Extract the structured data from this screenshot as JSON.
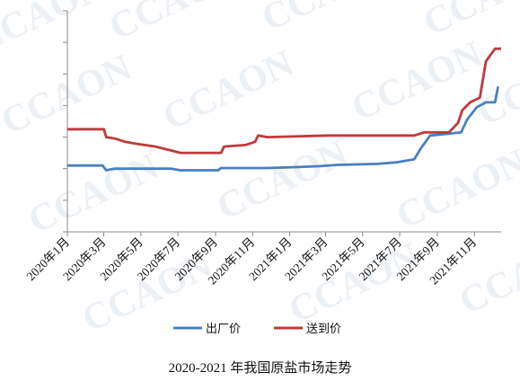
{
  "watermark": "CCAON",
  "caption": "2020-2021 年我国原盐市场走势",
  "chart_data": {
    "type": "line",
    "title": "2020-2021 年我国原盐市场走势",
    "xlabel": "",
    "ylabel": "",
    "x_range": [
      "2020-01-01",
      "2021-12-15"
    ],
    "x_ticks": [
      "2020年1月",
      "2020年3月",
      "2020年5月",
      "2020年7月",
      "2020年9月",
      "2020年11月",
      "2021年1月",
      "2021年3月",
      "2021年5月",
      "2021年7月",
      "2021年9月",
      "2021年11月"
    ],
    "y_tick_count": 8,
    "y_labels_visible": false,
    "legend_position": "bottom",
    "grid": false,
    "series": [
      {
        "name": "出厂价",
        "color": "#4a7fc1",
        "points": [
          [
            "2020-01-01",
            2.1
          ],
          [
            "2020-02-28",
            2.1
          ],
          [
            "2020-03-05",
            1.95
          ],
          [
            "2020-03-18",
            2.0
          ],
          [
            "2020-06-20",
            2.0
          ],
          [
            "2020-07-05",
            1.95
          ],
          [
            "2020-09-05",
            1.95
          ],
          [
            "2020-09-10",
            2.02
          ],
          [
            "2020-11-25",
            2.02
          ],
          [
            "2021-01-10",
            2.05
          ],
          [
            "2021-02-20",
            2.08
          ],
          [
            "2021-03-20",
            2.12
          ],
          [
            "2021-05-25",
            2.15
          ],
          [
            "2021-06-25",
            2.2
          ],
          [
            "2021-07-25",
            2.3
          ],
          [
            "2021-08-05",
            2.65
          ],
          [
            "2021-08-20",
            3.05
          ],
          [
            "2021-09-15",
            3.1
          ],
          [
            "2021-10-10",
            3.15
          ],
          [
            "2021-10-20",
            3.55
          ],
          [
            "2021-11-05",
            3.95
          ],
          [
            "2021-11-20",
            4.1
          ],
          [
            "2021-12-05",
            4.1
          ],
          [
            "2021-12-10",
            4.6
          ]
        ]
      },
      {
        "name": "送到价",
        "color": "#c0393b",
        "points": [
          [
            "2020-01-01",
            3.25
          ],
          [
            "2020-03-01",
            3.25
          ],
          [
            "2020-03-05",
            3.0
          ],
          [
            "2020-03-20",
            2.95
          ],
          [
            "2020-04-05",
            2.85
          ],
          [
            "2020-04-20",
            2.8
          ],
          [
            "2020-05-25",
            2.7
          ],
          [
            "2020-06-15",
            2.6
          ],
          [
            "2020-07-05",
            2.5
          ],
          [
            "2020-09-10",
            2.5
          ],
          [
            "2020-09-15",
            2.7
          ],
          [
            "2020-10-20",
            2.75
          ],
          [
            "2020-11-05",
            2.85
          ],
          [
            "2020-11-10",
            3.05
          ],
          [
            "2020-11-25",
            3.0
          ],
          [
            "2021-03-05",
            3.05
          ],
          [
            "2021-07-25",
            3.05
          ],
          [
            "2021-08-10",
            3.15
          ],
          [
            "2021-09-20",
            3.15
          ],
          [
            "2021-10-05",
            3.45
          ],
          [
            "2021-10-12",
            3.85
          ],
          [
            "2021-10-25",
            4.1
          ],
          [
            "2021-11-10",
            4.25
          ],
          [
            "2021-11-20",
            5.4
          ],
          [
            "2021-12-05",
            5.8
          ],
          [
            "2021-12-15",
            5.8
          ]
        ]
      }
    ]
  }
}
